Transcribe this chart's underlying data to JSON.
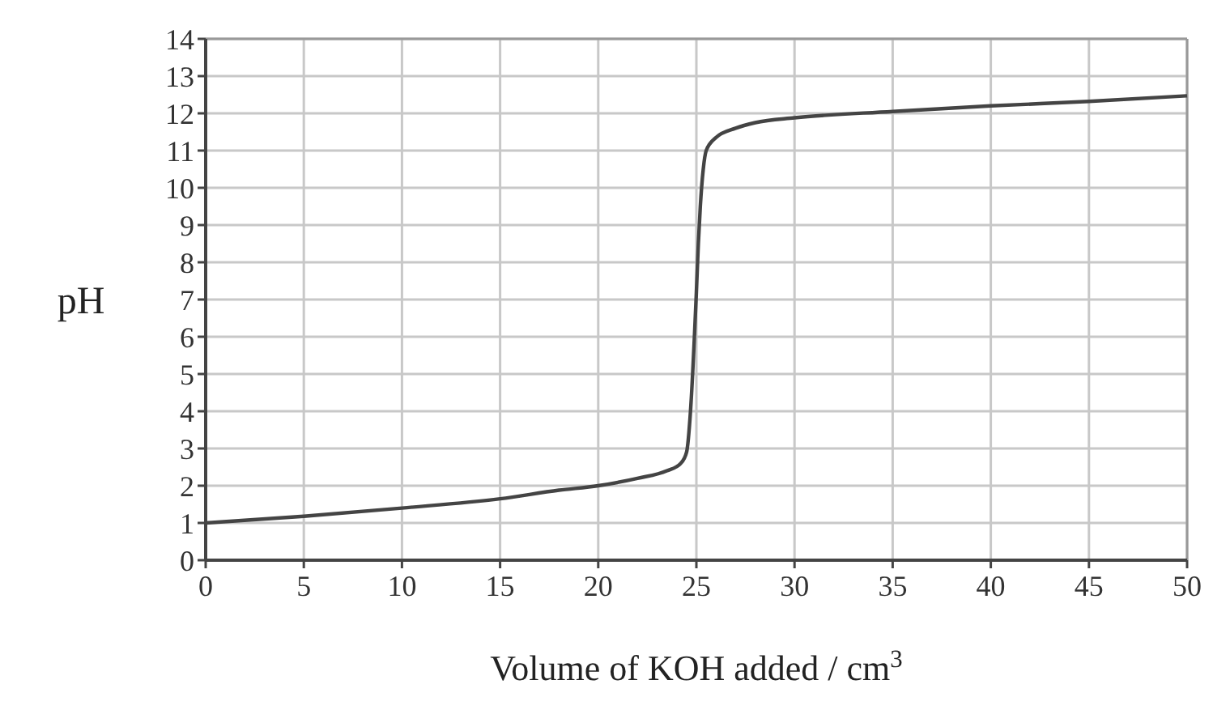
{
  "chart_data": {
    "type": "line",
    "xlabel": "Volume of KOH added / cm$^{3}$",
    "ylabel": "pH",
    "xlim": [
      0,
      50
    ],
    "ylim": [
      0,
      14
    ],
    "xticks": [
      0,
      5,
      10,
      15,
      20,
      25,
      30,
      35,
      40,
      45,
      50
    ],
    "yticks": [
      0,
      1,
      2,
      3,
      4,
      5,
      6,
      7,
      8,
      9,
      10,
      11,
      12,
      13,
      14
    ],
    "grid": true,
    "marker": "none",
    "line_style": "solid",
    "series": [
      {
        "color": "#444444",
        "x": [
          0,
          5,
          10,
          15,
          18,
          20,
          22,
          23.5,
          24.2,
          24.5,
          24.7,
          24.9,
          25,
          25.1,
          25.2,
          25.35,
          25.5,
          26,
          27,
          28,
          30,
          35,
          40,
          45,
          50
        ],
        "values": [
          1.0,
          1.18,
          1.4,
          1.65,
          1.88,
          2.0,
          2.2,
          2.4,
          2.6,
          2.9,
          4,
          6,
          7.2,
          8.5,
          9.5,
          10.5,
          11.0,
          11.35,
          11.6,
          11.75,
          11.88,
          12.05,
          12.2,
          12.32,
          12.47
        ]
      }
    ]
  }
}
